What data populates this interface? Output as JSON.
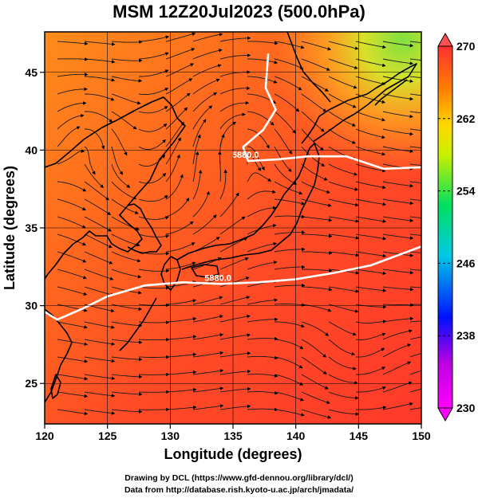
{
  "title": "MSM 12Z20Jul2023 (500.0hPa)",
  "axes": {
    "xlabel": "Longitude (degrees)",
    "ylabel": "Latitude  (degrees)",
    "xlim": [
      120,
      150
    ],
    "ylim": [
      22.4,
      47.6
    ],
    "xticks": [
      120,
      125,
      130,
      135,
      140,
      145,
      150
    ],
    "yticks": [
      25,
      30,
      35,
      40,
      45
    ],
    "grid": true
  },
  "colorbar": {
    "ticks": [
      230,
      238,
      246,
      254,
      262,
      270
    ],
    "range": [
      230,
      270
    ],
    "colors": {
      "low": "#ff00ff",
      "mid_low": "#0000ff",
      "mid": "#00ff66",
      "mid_high": "#ffff00",
      "high": "#ff3333"
    }
  },
  "contours": [
    {
      "label": "5880.0",
      "points": [
        [
          120,
          29.6
        ],
        [
          121,
          29.1
        ],
        [
          123,
          29.8
        ],
        [
          125,
          30.6
        ],
        [
          128,
          31.3
        ],
        [
          131,
          31.5
        ],
        [
          134,
          31.4
        ],
        [
          137,
          31.5
        ],
        [
          140,
          31.7
        ],
        [
          143,
          32.1
        ],
        [
          146,
          32.6
        ],
        [
          150,
          33.8
        ]
      ]
    },
    {
      "label": "5880.0",
      "points": [
        [
          137.8,
          46.2
        ],
        [
          137.6,
          44.0
        ],
        [
          138.4,
          42.6
        ],
        [
          137.4,
          41.3
        ],
        [
          135.8,
          40.2
        ],
        [
          136.2,
          39.3
        ],
        [
          138.5,
          39.4
        ],
        [
          141,
          39.6
        ],
        [
          144,
          39.6
        ],
        [
          147,
          38.8
        ],
        [
          150,
          38.9
        ]
      ]
    }
  ],
  "contour_labels": [
    "5880.0",
    "5880.0"
  ],
  "footer": {
    "line1": "Drawing by DCL (https://www.gfd-dennou.org/library/dcl/)",
    "line2": "Data from http://database.rish.kyoto-u.ac.jp/arch/jmadata/"
  }
}
